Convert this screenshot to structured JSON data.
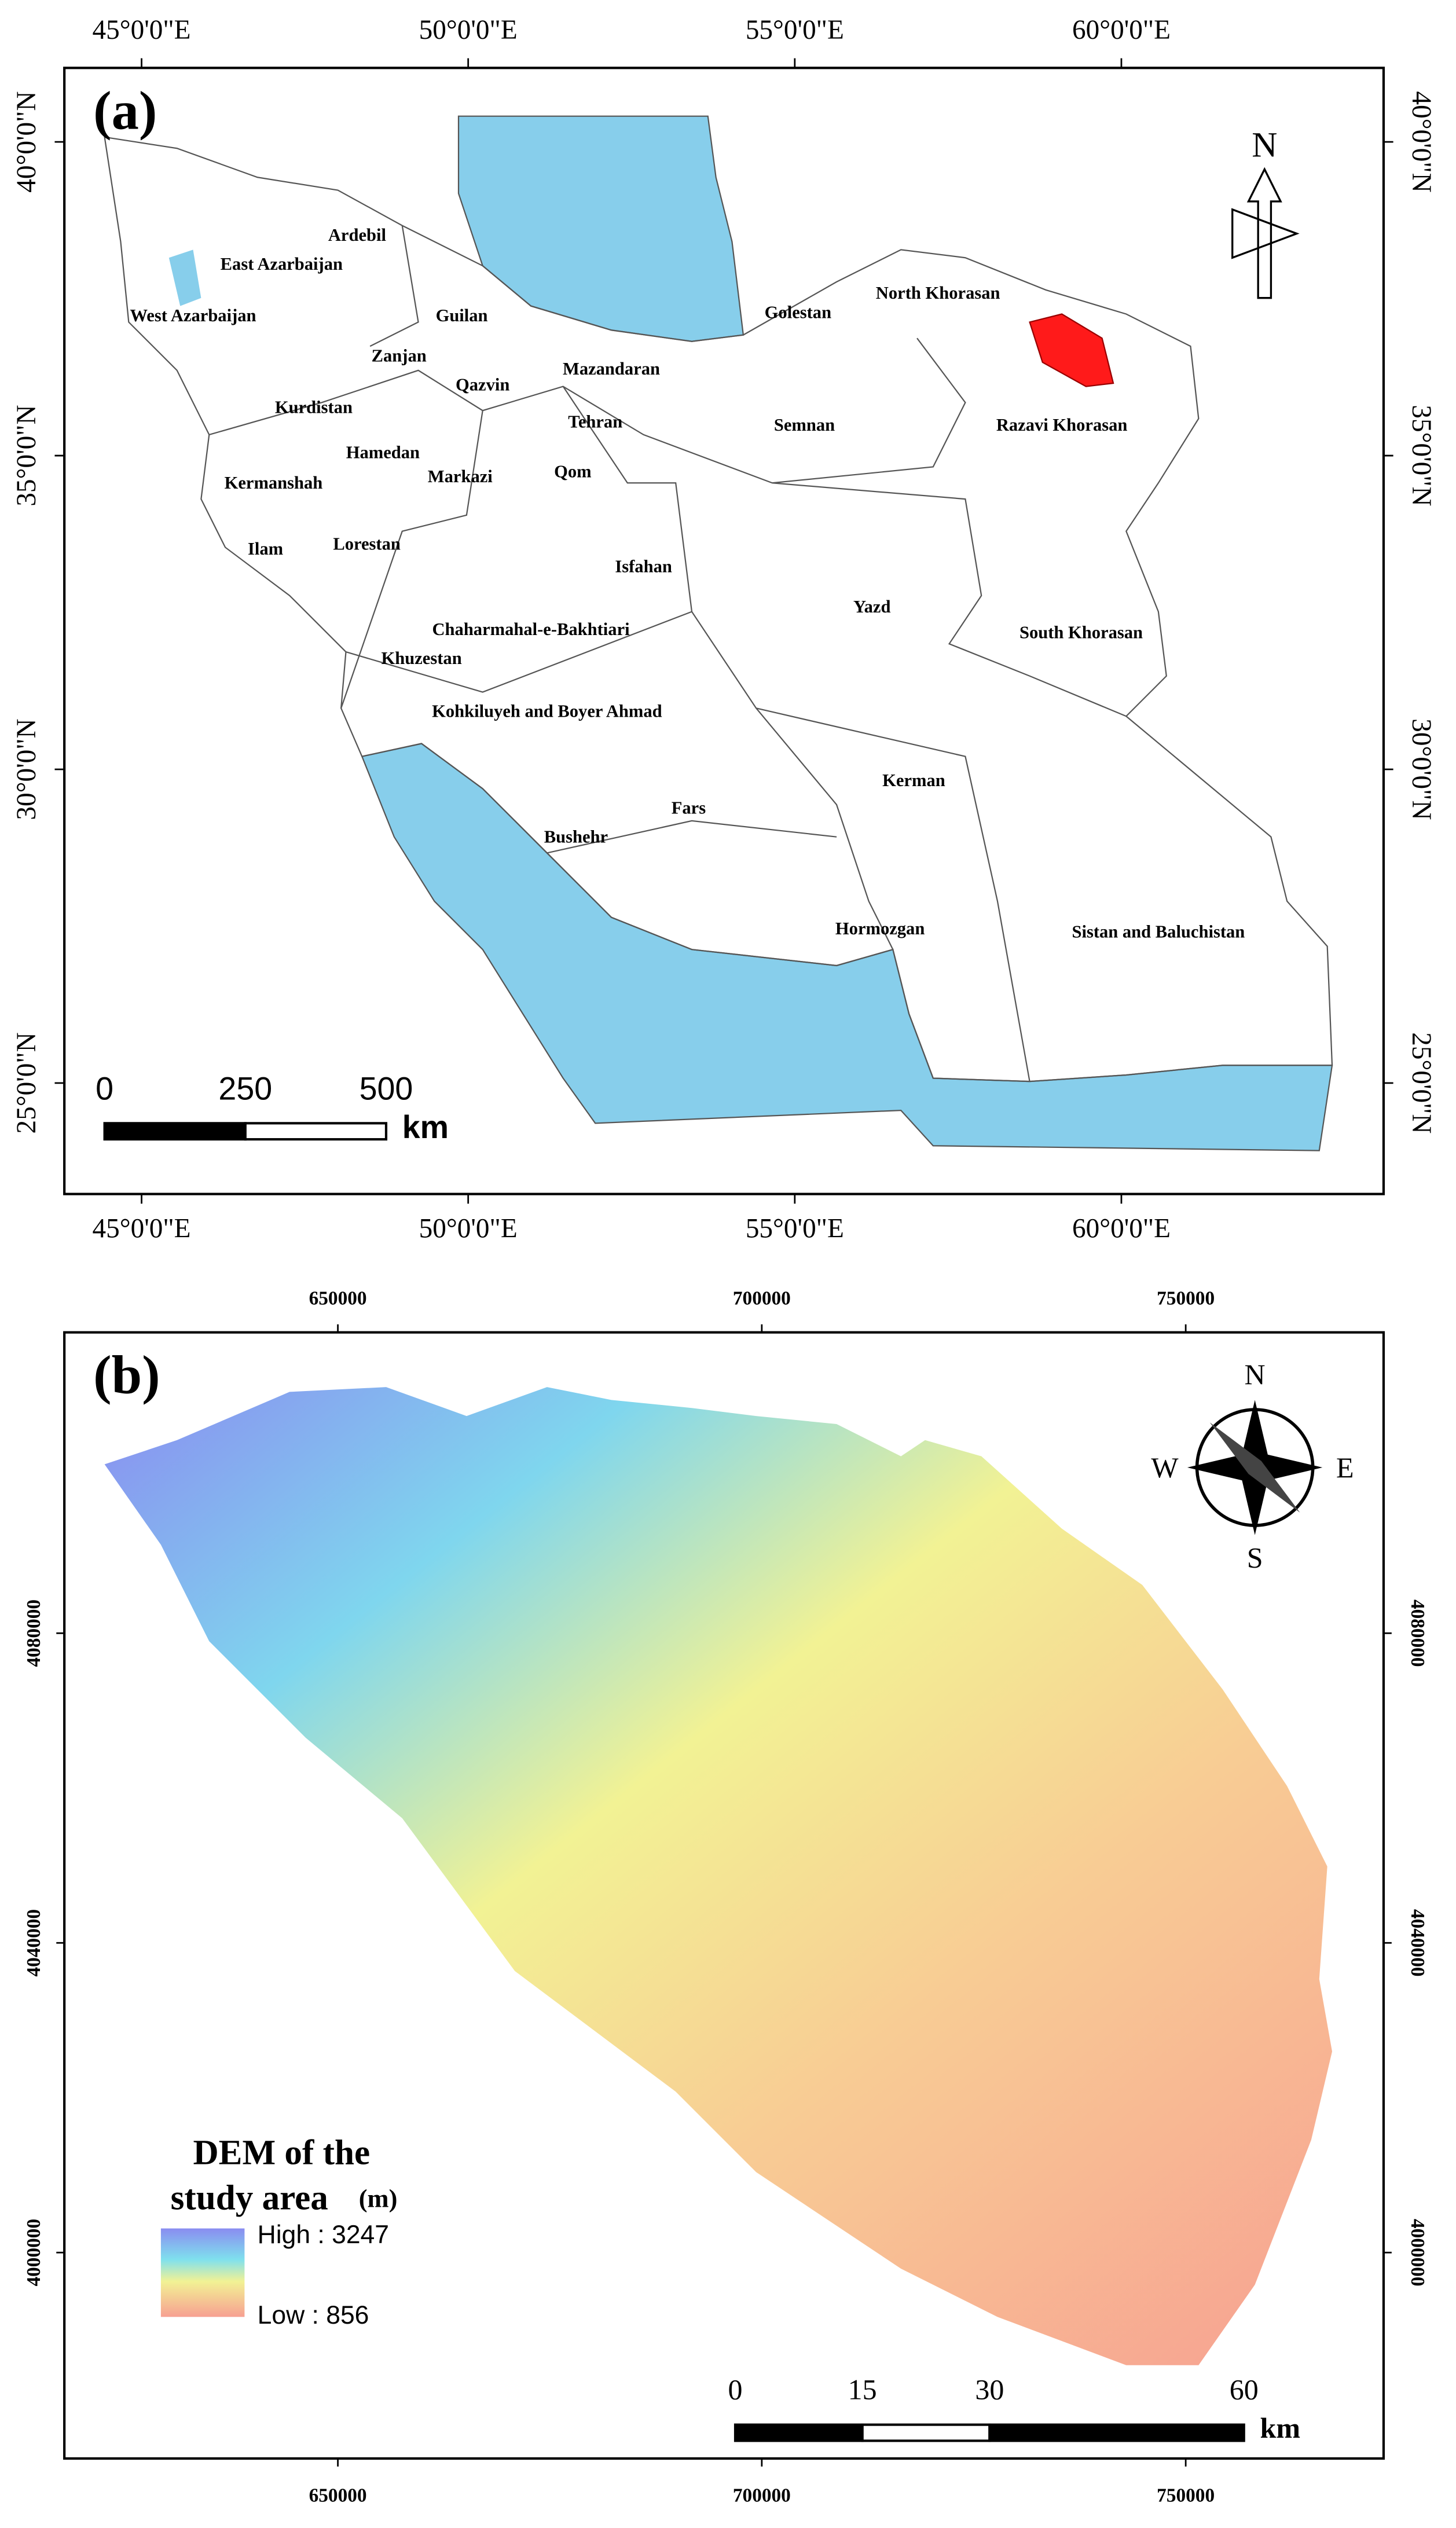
{
  "panel_a": {
    "label": "(a)",
    "lon_ticks": [
      {
        "value": 45,
        "label": "45°0'0\"E"
      },
      {
        "value": 50,
        "label": "50°0'0\"E"
      },
      {
        "value": 55,
        "label": "55°0'0\"E"
      },
      {
        "value": 60,
        "label": "60°0'0\"E"
      }
    ],
    "lat_ticks": [
      {
        "value": 40,
        "label": "40°0'0\"N"
      },
      {
        "value": 35,
        "label": "35°0'0\"N"
      },
      {
        "value": 30,
        "label": "30°0'0\"N"
      },
      {
        "value": 25,
        "label": "25°0'0\"N"
      }
    ],
    "north": "N",
    "provinces": [
      "Ardebil",
      "East Azarbaijan",
      "West Azarbaijan",
      "Guilan",
      "Zanjan",
      "Qazvin",
      "Kurdistan",
      "Mazandaran",
      "Golestan",
      "North Khorasan",
      "Tehran",
      "Semnan",
      "Razavi Khorasan",
      "Hamedan",
      "Markazi",
      "Qom",
      "Kermanshah",
      "Ilam",
      "Lorestan",
      "Isfahan",
      "Yazd",
      "South Khorasan",
      "Chaharmahal-e-Bakhtiari",
      "Khuzestan",
      "Kohkiluyeh and Boyer Ahmad",
      "Kerman",
      "Fars",
      "Bushehr",
      "Hormozgan",
      "Sistan and Baluchistan"
    ],
    "scale_bar": {
      "ticks": [
        0,
        250,
        500
      ],
      "unit": "km"
    }
  },
  "panel_b": {
    "label": "(b)",
    "easting_ticks": [
      650000,
      700000,
      750000
    ],
    "northing_ticks": [
      4080000,
      4040000,
      4000000
    ],
    "compass": {
      "n": "N",
      "e": "E",
      "s": "S",
      "w": "W"
    },
    "legend": {
      "title_line1": "DEM of the",
      "title_line2": "study area",
      "unit": "(m)",
      "high": "High : 3247",
      "low": "Low : 856"
    },
    "scale_bar": {
      "ticks": [
        0,
        15,
        30,
        60
      ],
      "unit": "km"
    }
  }
}
